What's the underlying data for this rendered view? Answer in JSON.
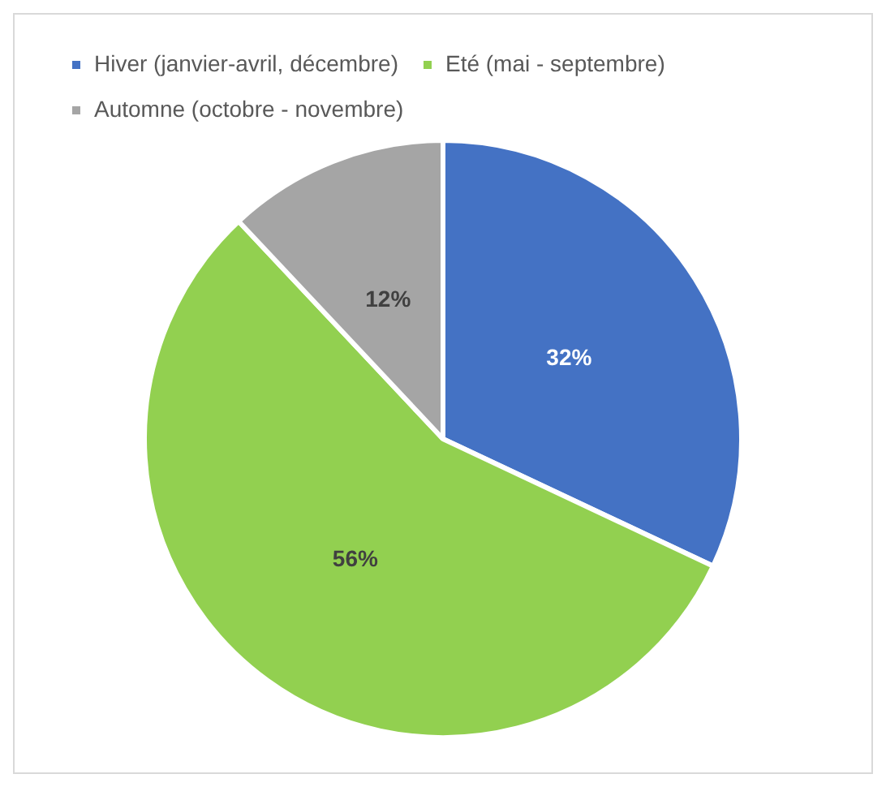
{
  "chart_data": {
    "type": "pie",
    "categories": [
      "Hiver (janvier-avril, décembre)",
      "Eté (mai - septembre)",
      "Automne (octobre - novembre)"
    ],
    "values": [
      32,
      56,
      12
    ],
    "colors": [
      "#4472c4",
      "#92d050",
      "#a5a5a5"
    ],
    "value_labels": [
      "32%",
      "56%",
      "12%"
    ],
    "legend": "top"
  }
}
